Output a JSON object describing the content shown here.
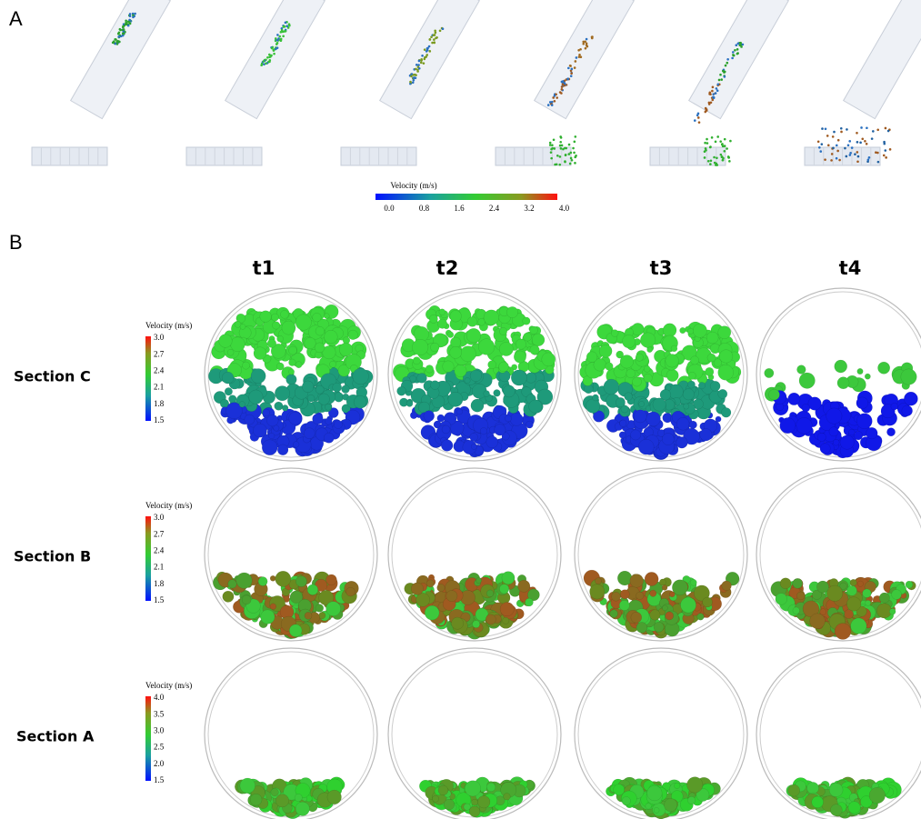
{
  "panel_a": {
    "label": "A",
    "colorbar": {
      "title": "Velocity (m/s)",
      "ticks": [
        "0.0",
        "0.8",
        "1.6",
        "2.4",
        "3.2",
        "4.0"
      ]
    }
  },
  "panel_b": {
    "label": "B",
    "columns": [
      "t1",
      "t2",
      "t3",
      "t4"
    ],
    "rows": [
      {
        "label": "Section C",
        "colorbar": {
          "title": "Velocity (m/s)",
          "ticks": [
            "3.0",
            "2.7",
            "2.4",
            "2.1",
            "1.8",
            "1.5"
          ]
        }
      },
      {
        "label": "Section B",
        "colorbar": {
          "title": "Velocity (m/s)",
          "ticks": [
            "3.0",
            "2.7",
            "2.4",
            "2.1",
            "1.8",
            "1.5"
          ]
        }
      },
      {
        "label": "Section A",
        "colorbar": {
          "title": "Velocity (m/s)",
          "ticks": [
            "4.0",
            "3.5",
            "3.0",
            "2.5",
            "2.0",
            "1.5"
          ]
        }
      }
    ]
  }
}
